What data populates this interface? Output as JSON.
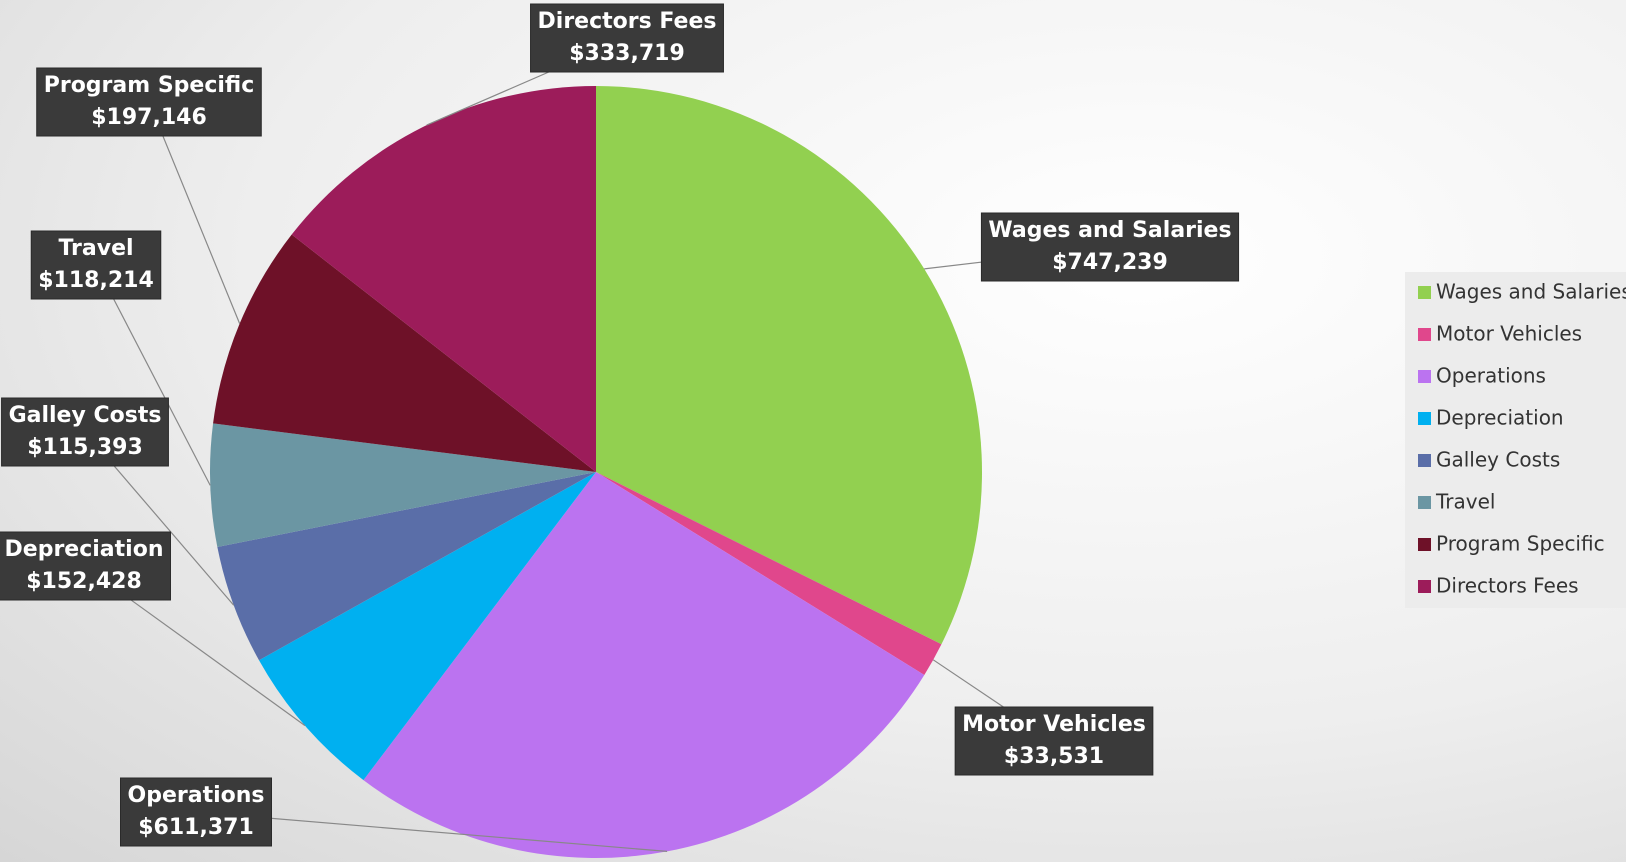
{
  "chart_data": {
    "type": "pie",
    "categories": [
      "Wages and Salaries",
      "Motor Vehicles",
      "Operations",
      "Depreciation",
      "Galley Costs",
      "Travel",
      "Program Specific",
      "Directors Fees"
    ],
    "values": [
      747239,
      33531,
      611371,
      152428,
      115393,
      118214,
      197146,
      333719
    ],
    "value_labels": [
      "$747,239",
      "$33,531",
      "$611,371",
      "$152,428",
      "$115,393",
      "$118,214",
      "$197,146",
      "$333,719"
    ],
    "colors": [
      "#92d050",
      "#e0478c",
      "#bb73f0",
      "#00b0f0",
      "#5a6ea8",
      "#6b96a3",
      "#6e1128",
      "#9c1c5a"
    ],
    "legend": "right"
  }
}
